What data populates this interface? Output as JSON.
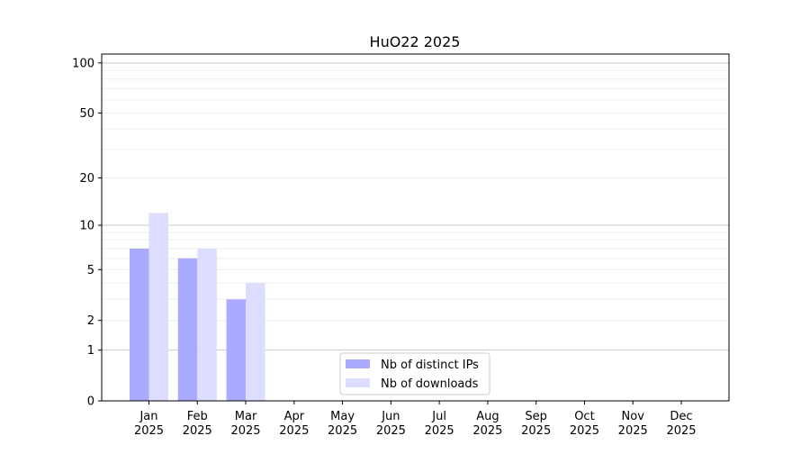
{
  "chart_data": {
    "type": "bar",
    "title": "HuO22 2025",
    "xlabel": "",
    "ylabel": "",
    "yscale": "log(1+y)",
    "ylim": [
      0,
      113
    ],
    "yticks": [
      0,
      1,
      2,
      5,
      10,
      20,
      50,
      100
    ],
    "grid": "horizontal, major at 1/10/100, minor between",
    "legend_position": "lower center",
    "categories": [
      "Jan\n2025",
      "Feb\n2025",
      "Mar\n2025",
      "Apr\n2025",
      "May\n2025",
      "Jun\n2025",
      "Jul\n2025",
      "Aug\n2025",
      "Sep\n2025",
      "Oct\n2025",
      "Nov\n2025",
      "Dec\n2025"
    ],
    "series": [
      {
        "name": "Nb of distinct IPs",
        "color": "#aaaaff",
        "values": [
          7,
          6,
          3,
          0,
          0,
          0,
          0,
          0,
          0,
          0,
          0,
          0
        ]
      },
      {
        "name": "Nb of downloads",
        "color": "#ddddff",
        "values": [
          12,
          7,
          4,
          0,
          0,
          0,
          0,
          0,
          0,
          0,
          0,
          0
        ]
      }
    ]
  }
}
